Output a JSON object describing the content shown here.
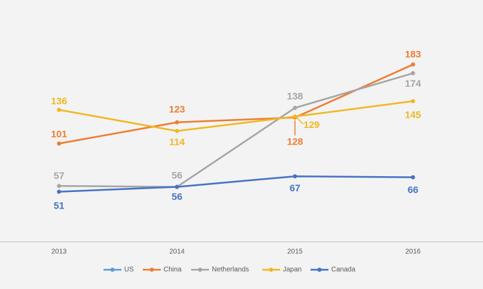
{
  "chart_data": {
    "type": "line",
    "categories": [
      "2013",
      "2014",
      "2015",
      "2016"
    ],
    "series": [
      {
        "name": "US",
        "color": "#5b9bd5",
        "values": [
          null,
          null,
          null,
          null
        ]
      },
      {
        "name": "China",
        "color": "#ed7d31",
        "values": [
          101,
          123,
          128,
          183
        ]
      },
      {
        "name": "Netherlands",
        "color": "#a5a5a5",
        "values": [
          57,
          56,
          138,
          174
        ]
      },
      {
        "name": "Japan",
        "color": "#f2b721",
        "values": [
          136,
          114,
          129,
          145
        ]
      },
      {
        "name": "Canada",
        "color": "#4472c4",
        "values": [
          51,
          56,
          67,
          66
        ]
      }
    ],
    "ylim": [
      0,
      250
    ],
    "legend": "bottom"
  }
}
